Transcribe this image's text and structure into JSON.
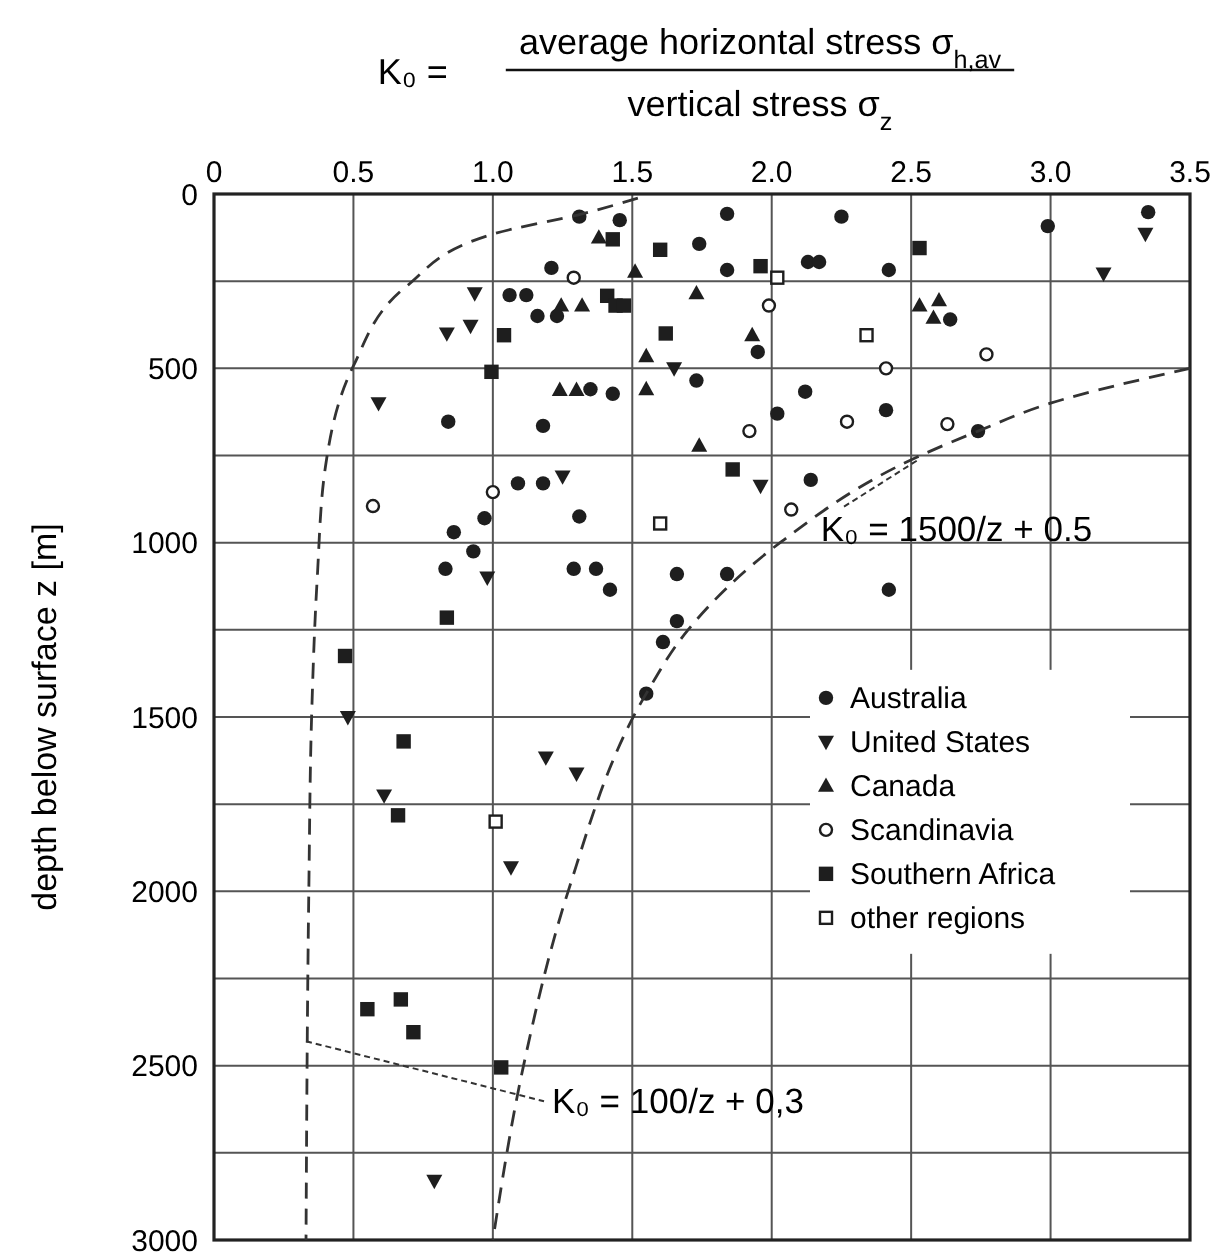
{
  "chart_data": {
    "type": "scatter",
    "xlabel": "K₀ = average horizontal stress σ$_{h,av}$ vertical stress σ$_{z}$",
    "ylabel": "depth below surface  z  [m]",
    "xlim": [
      0,
      3.5
    ],
    "xticks": [
      0,
      {
        "value": 0.5,
        "label": "0.5"
      },
      {
        "value": 1,
        "label": "1.0"
      },
      {
        "value": 1.5,
        "label": "1.5"
      },
      {
        "value": 2,
        "label": "2.0"
      },
      {
        "value": 2.5,
        "label": "2.5"
      },
      {
        "value": 3,
        "label": "3.0"
      },
      {
        "value": 3.5,
        "label": "3.5"
      }
    ],
    "ylim": [
      3000,
      0
    ],
    "yticks": [
      0,
      {
        "value": 250,
        "label": null
      },
      500,
      {
        "value": 750,
        "label": null
      },
      1000,
      {
        "value": 1250,
        "label": null
      },
      1500,
      {
        "value": 1750,
        "label": null
      },
      2000,
      {
        "value": 2250,
        "label": null
      },
      2500,
      {
        "value": 2750,
        "label": null
      },
      3000
    ],
    "grid": true,
    "legend": "bottom right",
    "series": [
      {
        "name": "Australia",
        "color": "#1e1e1e",
        "marker": "circle",
        "x": [
          1.31,
          1.455,
          1.84,
          2.25,
          2.99,
          3.35,
          1.74,
          1.21,
          1.84,
          2.13,
          2.17,
          2.42,
          1.06,
          1.12,
          1.16,
          1.23,
          2.64,
          1.95,
          1.73,
          1.35,
          1.43,
          2.12,
          2.02,
          2.41,
          0.84,
          1.18,
          2.74,
          1.09,
          1.18,
          2.14,
          0.97,
          1.31,
          0.86,
          0.93,
          0.83,
          1.29,
          1.37,
          1.42,
          1.66,
          1.84,
          2.42,
          1.66,
          1.61,
          1.55
        ],
        "values": [
          65,
          75,
          57,
          65,
          92,
          52,
          143,
          212,
          218,
          195,
          195,
          218,
          290,
          290,
          350,
          350,
          360,
          453,
          535,
          560,
          573,
          567,
          630,
          620,
          653,
          665,
          680,
          830,
          830,
          820,
          930,
          925,
          970,
          1025,
          1075,
          1075,
          1075,
          1135,
          1090,
          1090,
          1135,
          1225,
          1285,
          1433
        ]
      },
      {
        "name": "United States",
        "color": "#1e1e1e",
        "marker": "triangle-down",
        "x": [
          3.34,
          3.19,
          0.935,
          0.835,
          0.92,
          0.59,
          1.65,
          1.25,
          1.96,
          0.98,
          0.48,
          1.19,
          1.3,
          0.61,
          1.065,
          0.79
        ],
        "values": [
          114,
          228,
          285,
          400,
          378,
          600,
          500,
          810,
          837,
          1100,
          1500,
          1616,
          1662,
          1725,
          1931,
          2830
        ]
      },
      {
        "name": "Canada",
        "color": "#1e1e1e",
        "marker": "triangle",
        "x": [
          1.38,
          1.51,
          1.245,
          1.32,
          1.73,
          1.93,
          2.53,
          2.6,
          2.58,
          1.55,
          1.24,
          1.3,
          1.55,
          1.74
        ],
        "values": [
          125,
          223,
          320,
          320,
          285,
          405,
          320,
          305,
          355,
          465,
          562,
          562,
          560,
          722
        ]
      },
      {
        "name": "Scandinavia",
        "color": "#1e1e1e",
        "marker": "circle-open",
        "x": [
          1.99,
          2.77,
          2.41,
          1.92,
          2.27,
          2.63,
          1.0,
          0.57,
          2.07,
          1.29
        ],
        "values": [
          320,
          460,
          500,
          680,
          653,
          660,
          855,
          895,
          905,
          240
        ]
      },
      {
        "name": "Southern Africa",
        "color": "#1e1e1e",
        "marker": "square",
        "x": [
          1.43,
          1.6,
          1.41,
          1.44,
          1.47,
          1.04,
          0.995,
          1.96,
          2.53,
          1.62,
          1.86,
          0.835,
          0.47,
          0.68,
          0.66,
          0.55,
          0.67,
          0.715,
          1.03
        ],
        "values": [
          130,
          160,
          292,
          320,
          320,
          405,
          510,
          207,
          155,
          400,
          790,
          1215,
          1325,
          1570,
          1782,
          2338,
          2310,
          2404,
          2505
        ]
      },
      {
        "name": "other regions",
        "color": "#1e1e1e",
        "marker": "square-open",
        "x": [
          2.02,
          2.34,
          1.6,
          1.01
        ],
        "values": [
          240,
          405,
          945,
          1800
        ]
      },
      {
        "type": "line",
        "color": "#333333",
        "marker": "none",
        "line_style": "dashed",
        "x": [
          3.5,
          3.0,
          2.74,
          2.52,
          2.03,
          1.7,
          1.55,
          1.27,
          1.11,
          1.0
        ],
        "values": [
          500,
          600,
          680,
          755,
          1000,
          1250,
          1433,
          2000,
          2500,
          3000
        ]
      },
      {
        "type": "line",
        "color": "#333333",
        "marker": "none",
        "line_style": "dashed",
        "x": [
          1.52,
          1.32,
          1.0,
          0.69,
          0.5,
          0.4,
          0.37,
          0.35,
          0.34,
          0.33
        ],
        "values": [
          12,
          57,
          115,
          265,
          493,
          780,
          1105,
          1500,
          2000,
          3000
        ]
      }
    ],
    "annotations": [
      {
        "text": "K₀ = 1500/z + 0.5",
        "x": 2.52,
        "y": 765
      },
      {
        "text": "K₀ = 100/z + 0,3",
        "x": 0.33,
        "y": 2430
      }
    ]
  }
}
